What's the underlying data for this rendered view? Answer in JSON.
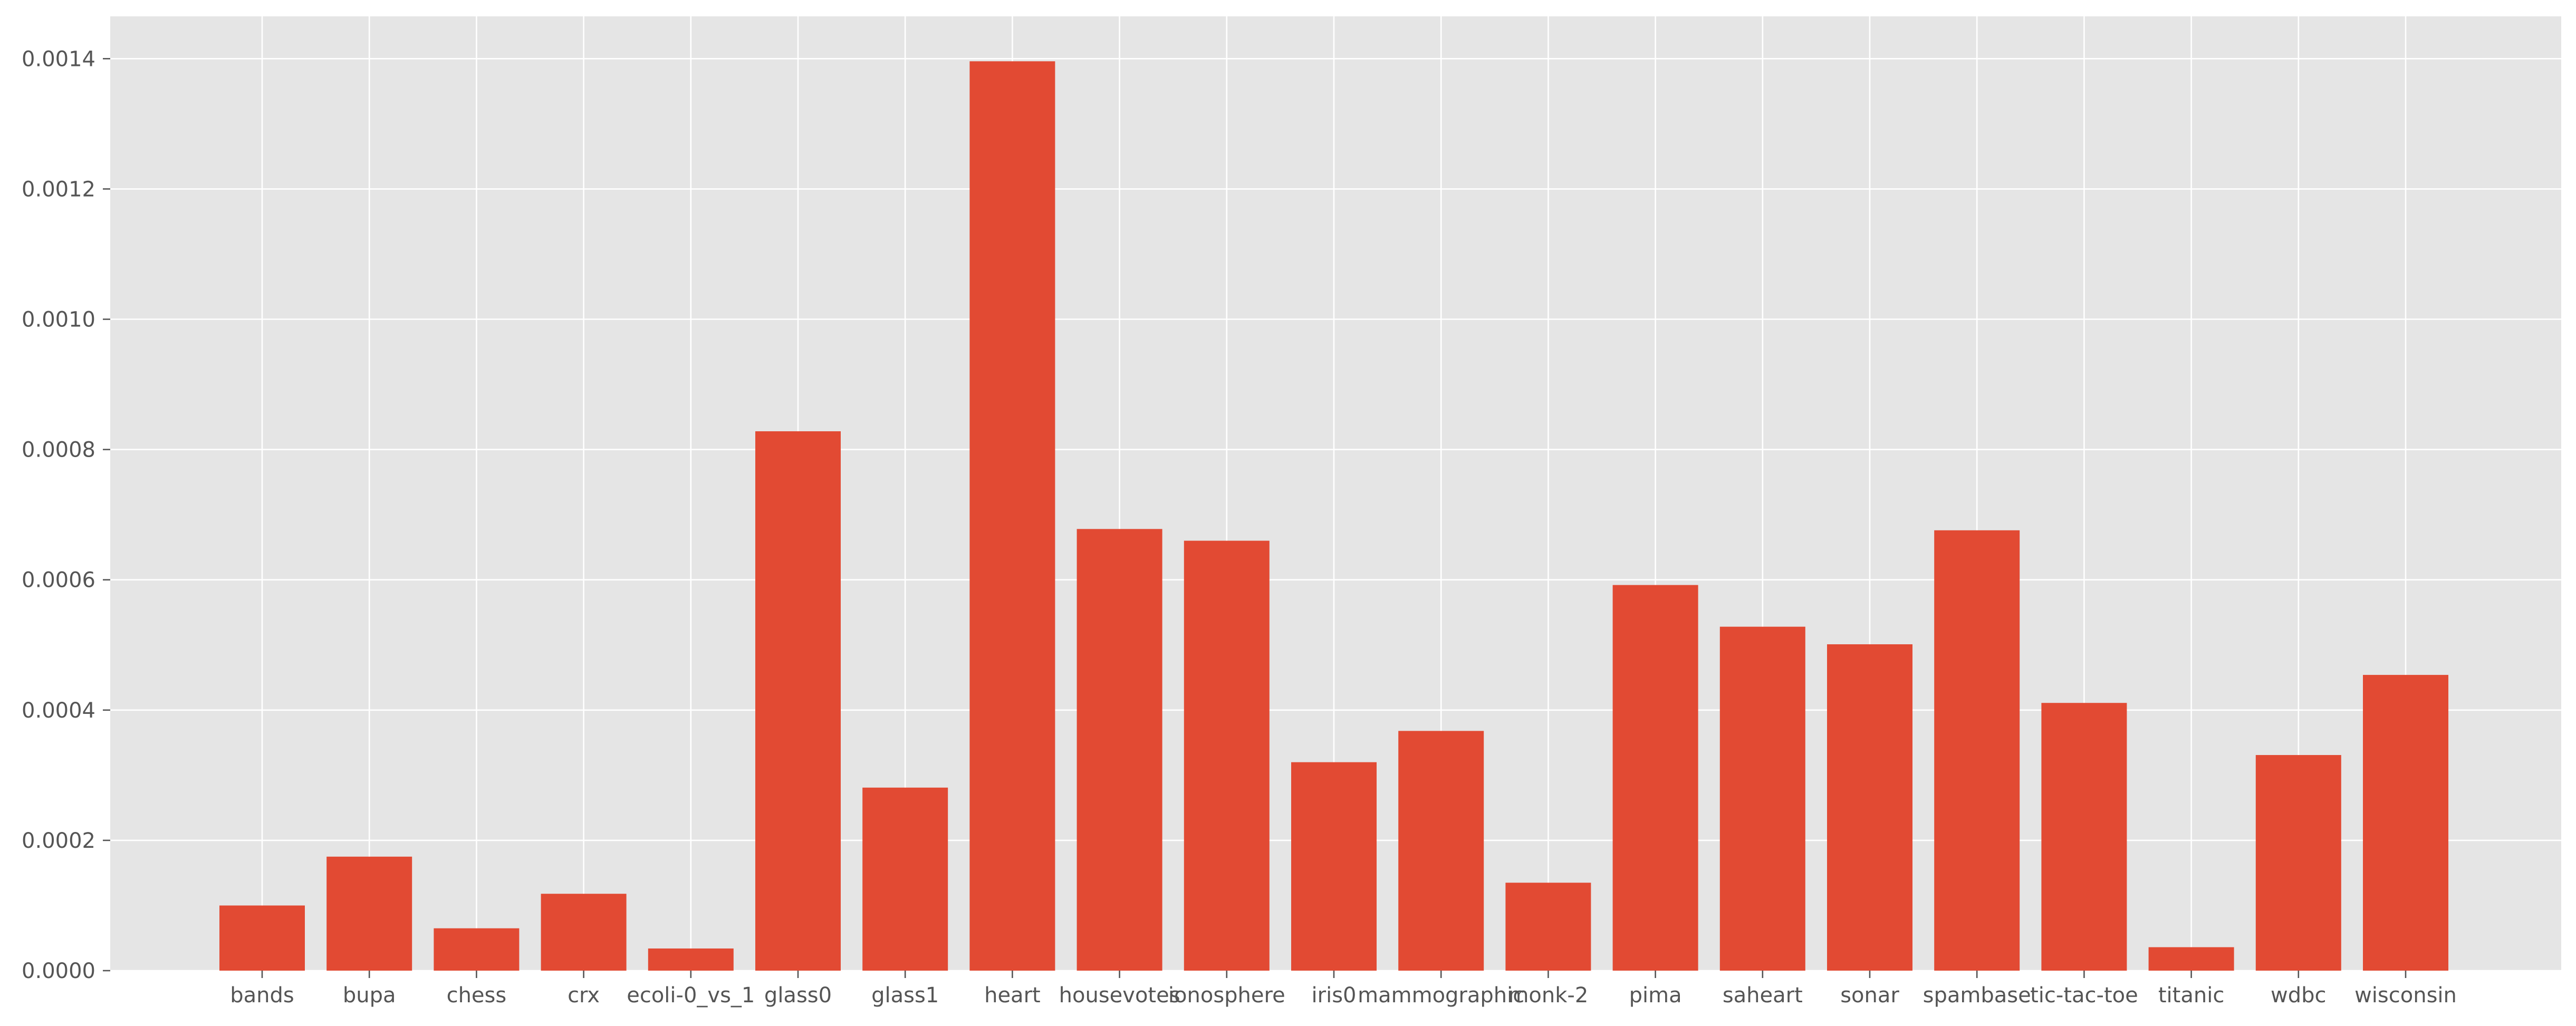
{
  "chart_data": {
    "type": "bar",
    "title": "",
    "xlabel": "",
    "ylabel": "",
    "ylim": [
      0,
      0.001465
    ],
    "yticks": [
      "0.0000",
      "0.0002",
      "0.0004",
      "0.0006",
      "0.0008",
      "0.0010",
      "0.0012",
      "0.0014"
    ],
    "grid": true,
    "categories": [
      "bands",
      "bupa",
      "chess",
      "crx",
      "ecoli-0_vs_1",
      "glass0",
      "glass1",
      "heart",
      "housevotes",
      "ionosphere",
      "iris0",
      "mammographic",
      "monk-2",
      "pima",
      "saheart",
      "sonar",
      "spambase",
      "tic-tac-toe",
      "titanic",
      "wdbc",
      "wisconsin"
    ],
    "values": [
      0.0001,
      0.000175,
      6.5e-05,
      0.000118,
      3.4e-05,
      0.000828,
      0.000281,
      0.001396,
      0.000678,
      0.00066,
      0.00032,
      0.000368,
      0.000135,
      0.000592,
      0.000528,
      0.000501,
      0.000676,
      0.000411,
      3.6e-05,
      0.000331,
      0.000454
    ],
    "colors": {
      "bar": "#E24A33",
      "background": "#E5E5E5",
      "grid": "#FFFFFF",
      "text": "#555555"
    }
  }
}
